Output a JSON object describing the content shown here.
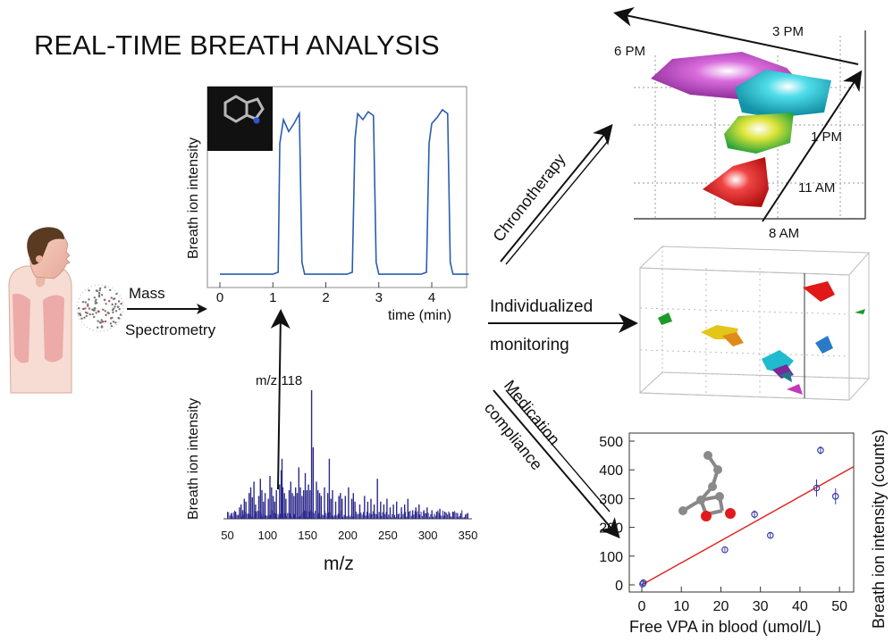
{
  "title": "REAL-TIME BREATH ANALYSIS",
  "inlet": {
    "label_line1": "Mass",
    "label_line2": "Spectrometry"
  },
  "time_trace": {
    "ylabel": "Breath ion intensity",
    "xlabel": "time (min)",
    "xticks": [
      "0",
      "1",
      "2",
      "3",
      "4"
    ],
    "annotation": "m/z 118",
    "colors": {
      "line": "#2a5db0",
      "inset_bg": "#111111",
      "molecule": "#b8b8b8",
      "nitrogen": "#2f55d4"
    }
  },
  "mass_spectrum": {
    "ylabel": "Breath ion intensity",
    "xlabel": "m/z",
    "xticks": [
      "50",
      "100",
      "150",
      "200",
      "250",
      "300",
      "350"
    ],
    "colors": {
      "bars": "#2d2a8c"
    }
  },
  "arrows": {
    "chronotherapy": "Chronotherapy",
    "individualized_line1": "Individualized",
    "individualized_line2": "monitoring",
    "medication_line1": "Medication",
    "medication_line2": "compliance"
  },
  "chronotherapy_plot": {
    "time_labels": [
      "3 PM",
      "6 PM",
      "1 PM",
      "11 AM",
      "8 AM"
    ],
    "colors": {
      "magenta": "#b23bb8",
      "cyan": "#22c6d8",
      "yellow": "#c9d31e",
      "red": "#e01818"
    }
  },
  "scatter_3d": {
    "colors": {
      "red": "#e01818",
      "green": "#1e9a2a",
      "yellow": "#e3c61a",
      "orange": "#e08a1a",
      "blue": "#2a7ac8",
      "cyan": "#1fbcd0",
      "purple": "#7a2a9a",
      "magenta": "#c23ab8"
    }
  },
  "chart_data": [
    {
      "type": "line",
      "xlabel": "time (min)",
      "ylabel": "Breath ion intensity",
      "xlim": [
        0,
        4.7
      ],
      "ylim": [
        0,
        1
      ],
      "x": [
        0,
        0.5,
        1.0,
        1.1,
        1.13,
        1.2,
        1.3,
        1.4,
        1.5,
        1.55,
        1.6,
        2.0,
        2.4,
        2.5,
        2.55,
        2.6,
        2.7,
        2.8,
        2.9,
        2.95,
        3.0,
        3.5,
        3.8,
        3.9,
        3.95,
        4.0,
        4.1,
        4.2,
        4.3,
        4.35,
        4.4,
        4.7
      ],
      "y": [
        0.04,
        0.04,
        0.04,
        0.05,
        0.7,
        0.82,
        0.76,
        0.8,
        0.85,
        0.1,
        0.04,
        0.04,
        0.04,
        0.05,
        0.72,
        0.85,
        0.82,
        0.86,
        0.84,
        0.1,
        0.04,
        0.04,
        0.04,
        0.05,
        0.7,
        0.8,
        0.83,
        0.87,
        0.85,
        0.1,
        0.04,
        0.04
      ]
    },
    {
      "type": "bar",
      "xlabel": "m/z",
      "ylabel": "Breath ion intensity",
      "xlim": [
        45,
        355
      ],
      "ylim": [
        0,
        1
      ],
      "x": [
        55,
        60,
        65,
        67,
        69,
        71,
        73,
        77,
        79,
        81,
        83,
        85,
        89,
        91,
        93,
        95,
        97,
        101,
        103,
        105,
        107,
        109,
        111,
        115,
        117,
        118,
        119,
        121,
        123,
        127,
        129,
        131,
        133,
        135,
        137,
        139,
        141,
        143,
        145,
        147,
        149,
        151,
        153,
        155,
        157,
        161,
        163,
        165,
        167,
        171,
        175,
        177,
        179,
        181,
        185,
        189,
        191,
        193,
        197,
        201,
        205,
        207,
        209,
        215,
        221,
        225,
        229,
        233,
        237,
        241,
        245,
        249,
        253,
        257,
        261,
        267,
        271,
        275,
        281,
        285,
        289,
        295,
        299,
        305,
        311,
        315,
        321,
        327,
        331,
        337,
        341,
        347
      ],
      "y": [
        0.04,
        0.05,
        0.08,
        0.1,
        0.06,
        0.14,
        0.12,
        0.18,
        0.22,
        0.15,
        0.26,
        0.1,
        0.16,
        0.28,
        0.2,
        0.12,
        0.18,
        0.14,
        0.3,
        0.22,
        0.16,
        0.12,
        0.2,
        0.24,
        0.34,
        0.42,
        0.22,
        0.18,
        0.14,
        0.2,
        0.26,
        0.18,
        0.16,
        0.22,
        0.18,
        0.36,
        0.22,
        0.16,
        0.2,
        0.32,
        0.2,
        0.24,
        0.2,
        0.9,
        0.5,
        0.26,
        0.2,
        0.18,
        0.16,
        0.22,
        0.18,
        0.42,
        0.14,
        0.2,
        0.12,
        0.16,
        0.18,
        0.14,
        0.16,
        0.22,
        0.14,
        0.18,
        0.12,
        0.1,
        0.16,
        0.12,
        0.14,
        0.1,
        0.28,
        0.12,
        0.1,
        0.14,
        0.08,
        0.1,
        0.12,
        0.08,
        0.1,
        0.14,
        0.06,
        0.08,
        0.1,
        0.06,
        0.08,
        0.06,
        0.05,
        0.07,
        0.05,
        0.04,
        0.05,
        0.04,
        0.04,
        0.03
      ]
    },
    {
      "type": "scatter",
      "xlabel": "Free VPA in blood (umol/L)",
      "ylabel": "Breath ion intensity (counts)",
      "xlim": [
        -1,
        55
      ],
      "ylim": [
        -20,
        500
      ],
      "xticks": [
        "0",
        "10",
        "20",
        "30",
        "40",
        "50"
      ],
      "yticks": [
        "0",
        "100",
        "200",
        "300",
        "400",
        "500"
      ],
      "points": [
        {
          "x": 0.2,
          "y": 3,
          "err": 5
        },
        {
          "x": 0.4,
          "y": 7,
          "err": 5
        },
        {
          "x": 21,
          "y": 122,
          "err": 6
        },
        {
          "x": 28.5,
          "y": 245,
          "err": 14
        },
        {
          "x": 32.5,
          "y": 172,
          "err": 10
        },
        {
          "x": 44.2,
          "y": 337,
          "err": 30
        },
        {
          "x": 45.2,
          "y": 468,
          "err": 14
        },
        {
          "x": 49,
          "y": 308,
          "err": 28
        }
      ],
      "fit": {
        "x": [
          0,
          55
        ],
        "y": [
          0,
          422
        ]
      },
      "colors": {
        "points": "#3a3aa8",
        "fit": "#e0201a"
      }
    }
  ]
}
